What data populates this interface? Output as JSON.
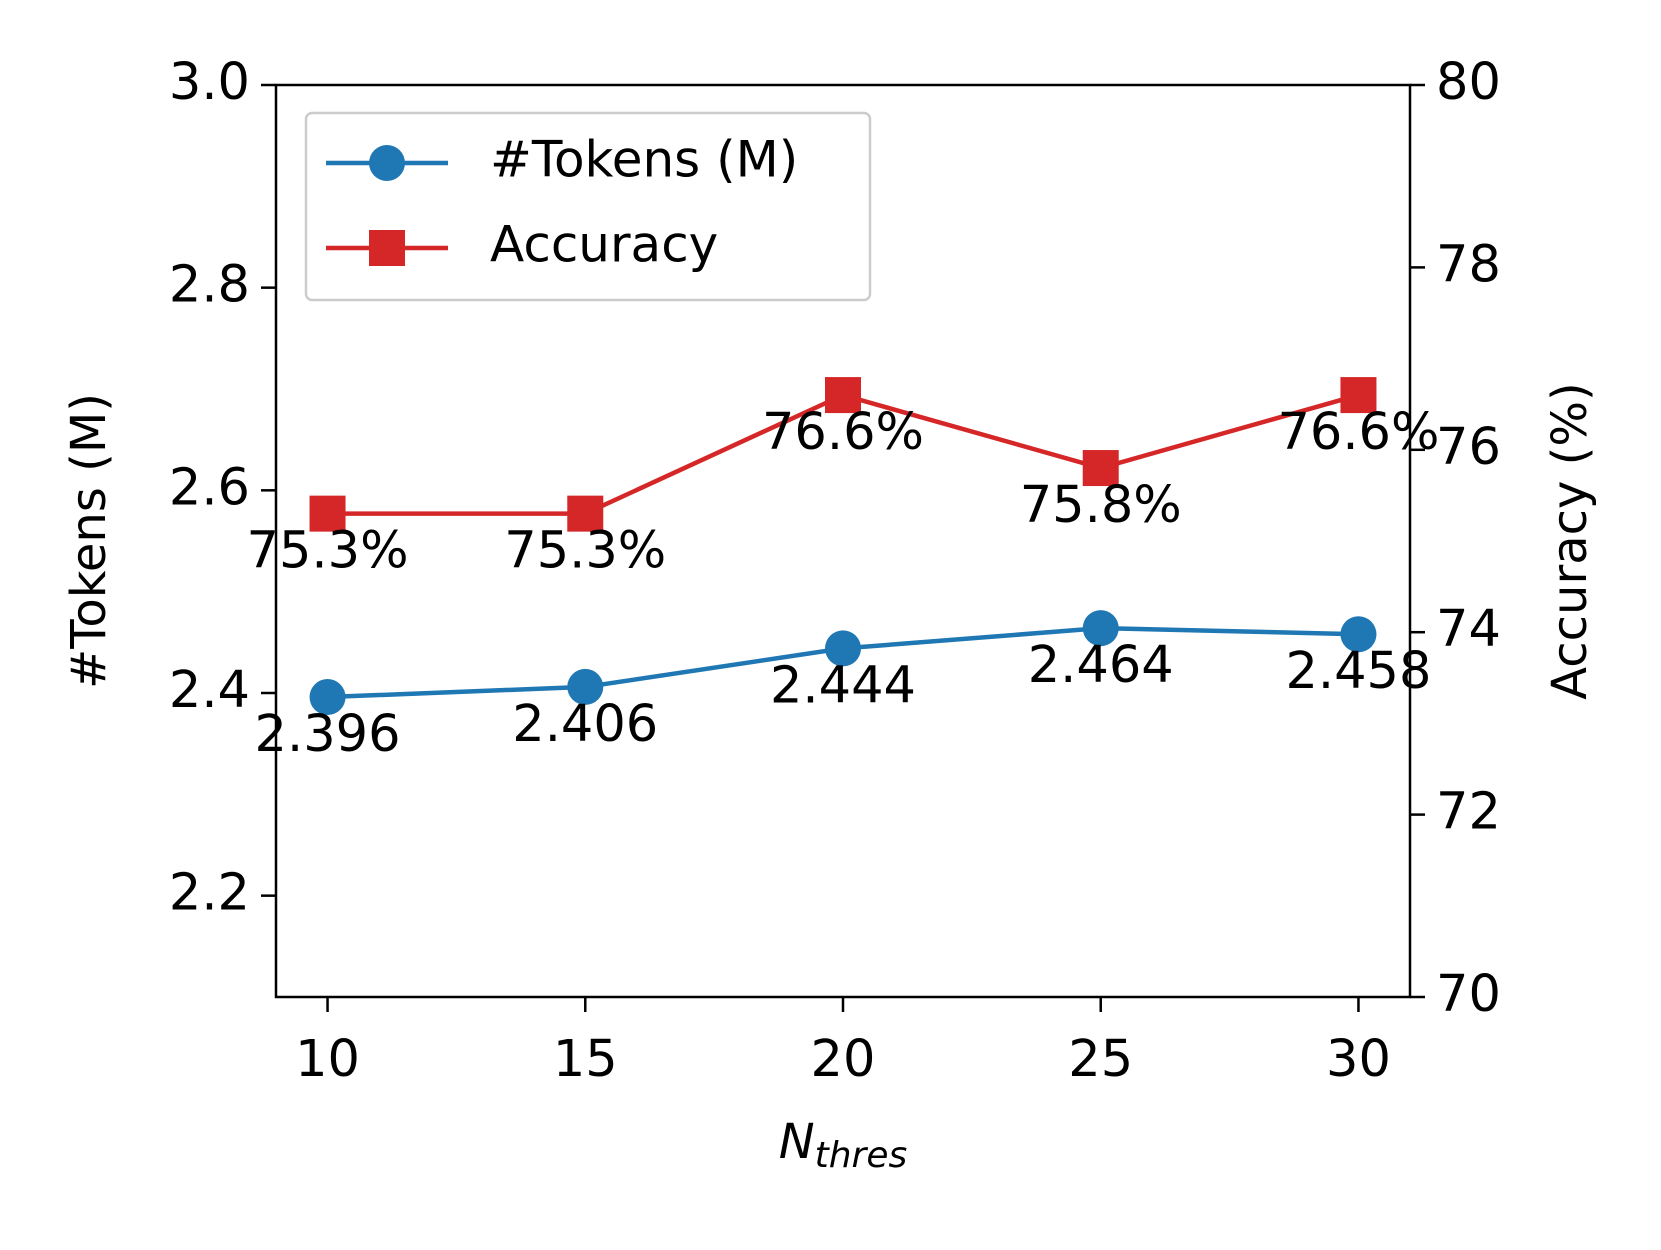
{
  "chart_data": {
    "type": "dual-line",
    "x_label": {
      "main": "N",
      "sub": "thres"
    },
    "y_label": "#Tokens (M)",
    "y2_label": "Accuracy (%)",
    "x": [
      10,
      15,
      20,
      25,
      30
    ],
    "xlim": [
      9,
      31
    ],
    "xticks": [
      10,
      15,
      20,
      25,
      30
    ],
    "ylim": [
      2.1,
      3.0
    ],
    "yticks": [
      2.2,
      2.4,
      2.6,
      2.8,
      {
        "value": 3,
        "label": "3.0"
      }
    ],
    "y2lim": [
      70,
      80
    ],
    "y2ticks": [
      70,
      72,
      74,
      76,
      78,
      80
    ],
    "legend": "upper left",
    "series": [
      {
        "name": "#Tokens (M)",
        "color": "#1f77b4",
        "marker": "circle",
        "values": [
          2.396,
          2.406,
          2.444,
          2.464,
          2.458
        ]
      },
      {
        "name": "Accuracy",
        "color": "#d62728",
        "marker": "square",
        "axis": "y2",
        "values": [
          75.3,
          75.3,
          76.6,
          75.8,
          76.6
        ],
        "value_labels": [
          "75.3%",
          "75.3%",
          "76.6%",
          "75.8%",
          "76.6%"
        ]
      }
    ]
  }
}
